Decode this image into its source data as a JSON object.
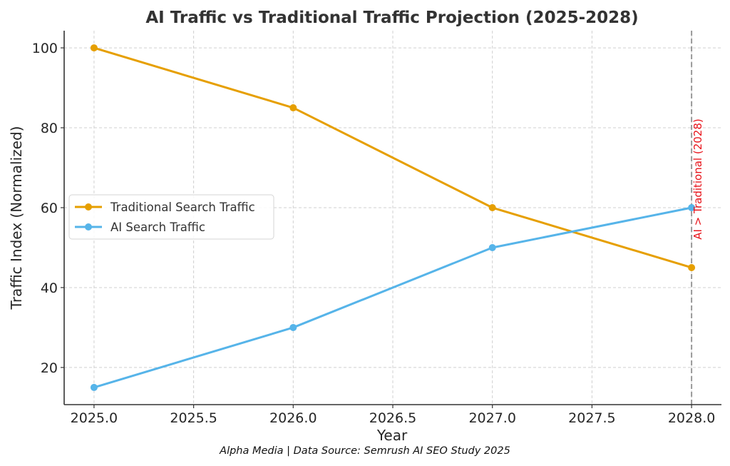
{
  "chart_data": {
    "type": "line",
    "title": "AI Traffic vs Traditional Traffic Projection (2025-2028)",
    "xlabel": "Year",
    "ylabel": "Traffic Index (Normalized)",
    "x": [
      2025,
      2026,
      2027,
      2028
    ],
    "xlim": [
      2024.85,
      2028.15
    ],
    "ylim": [
      10.7,
      104.3
    ],
    "xticks": [
      2025.0,
      2025.5,
      2026.0,
      2026.5,
      2027.0,
      2027.5,
      2028.0
    ],
    "xtick_labels": [
      "2025.0",
      "2025.5",
      "2026.0",
      "2026.5",
      "2027.0",
      "2027.5",
      "2028.0"
    ],
    "yticks": [
      20,
      40,
      60,
      80,
      100
    ],
    "ytick_labels": [
      "20",
      "40",
      "60",
      "80",
      "100"
    ],
    "grid": true,
    "legend_position": "center-left",
    "series": [
      {
        "name": "Traditional Search Traffic",
        "values": [
          100,
          85,
          60,
          45
        ],
        "color": "#e69f00",
        "marker": "circle"
      },
      {
        "name": "AI Search Traffic",
        "values": [
          15,
          30,
          50,
          60
        ],
        "color": "#56b4e9",
        "marker": "circle"
      }
    ],
    "annotations": [
      {
        "type": "vline",
        "x": 2028,
        "style": "dashed",
        "color": "#999999"
      },
      {
        "type": "text",
        "text": "AI > Traditional (2028)",
        "x": 2028,
        "y": 52,
        "rotation": 90,
        "color": "#e8141b"
      }
    ],
    "footer": "Alpha Media | Data Source: Semrush AI SEO Study 2025"
  }
}
